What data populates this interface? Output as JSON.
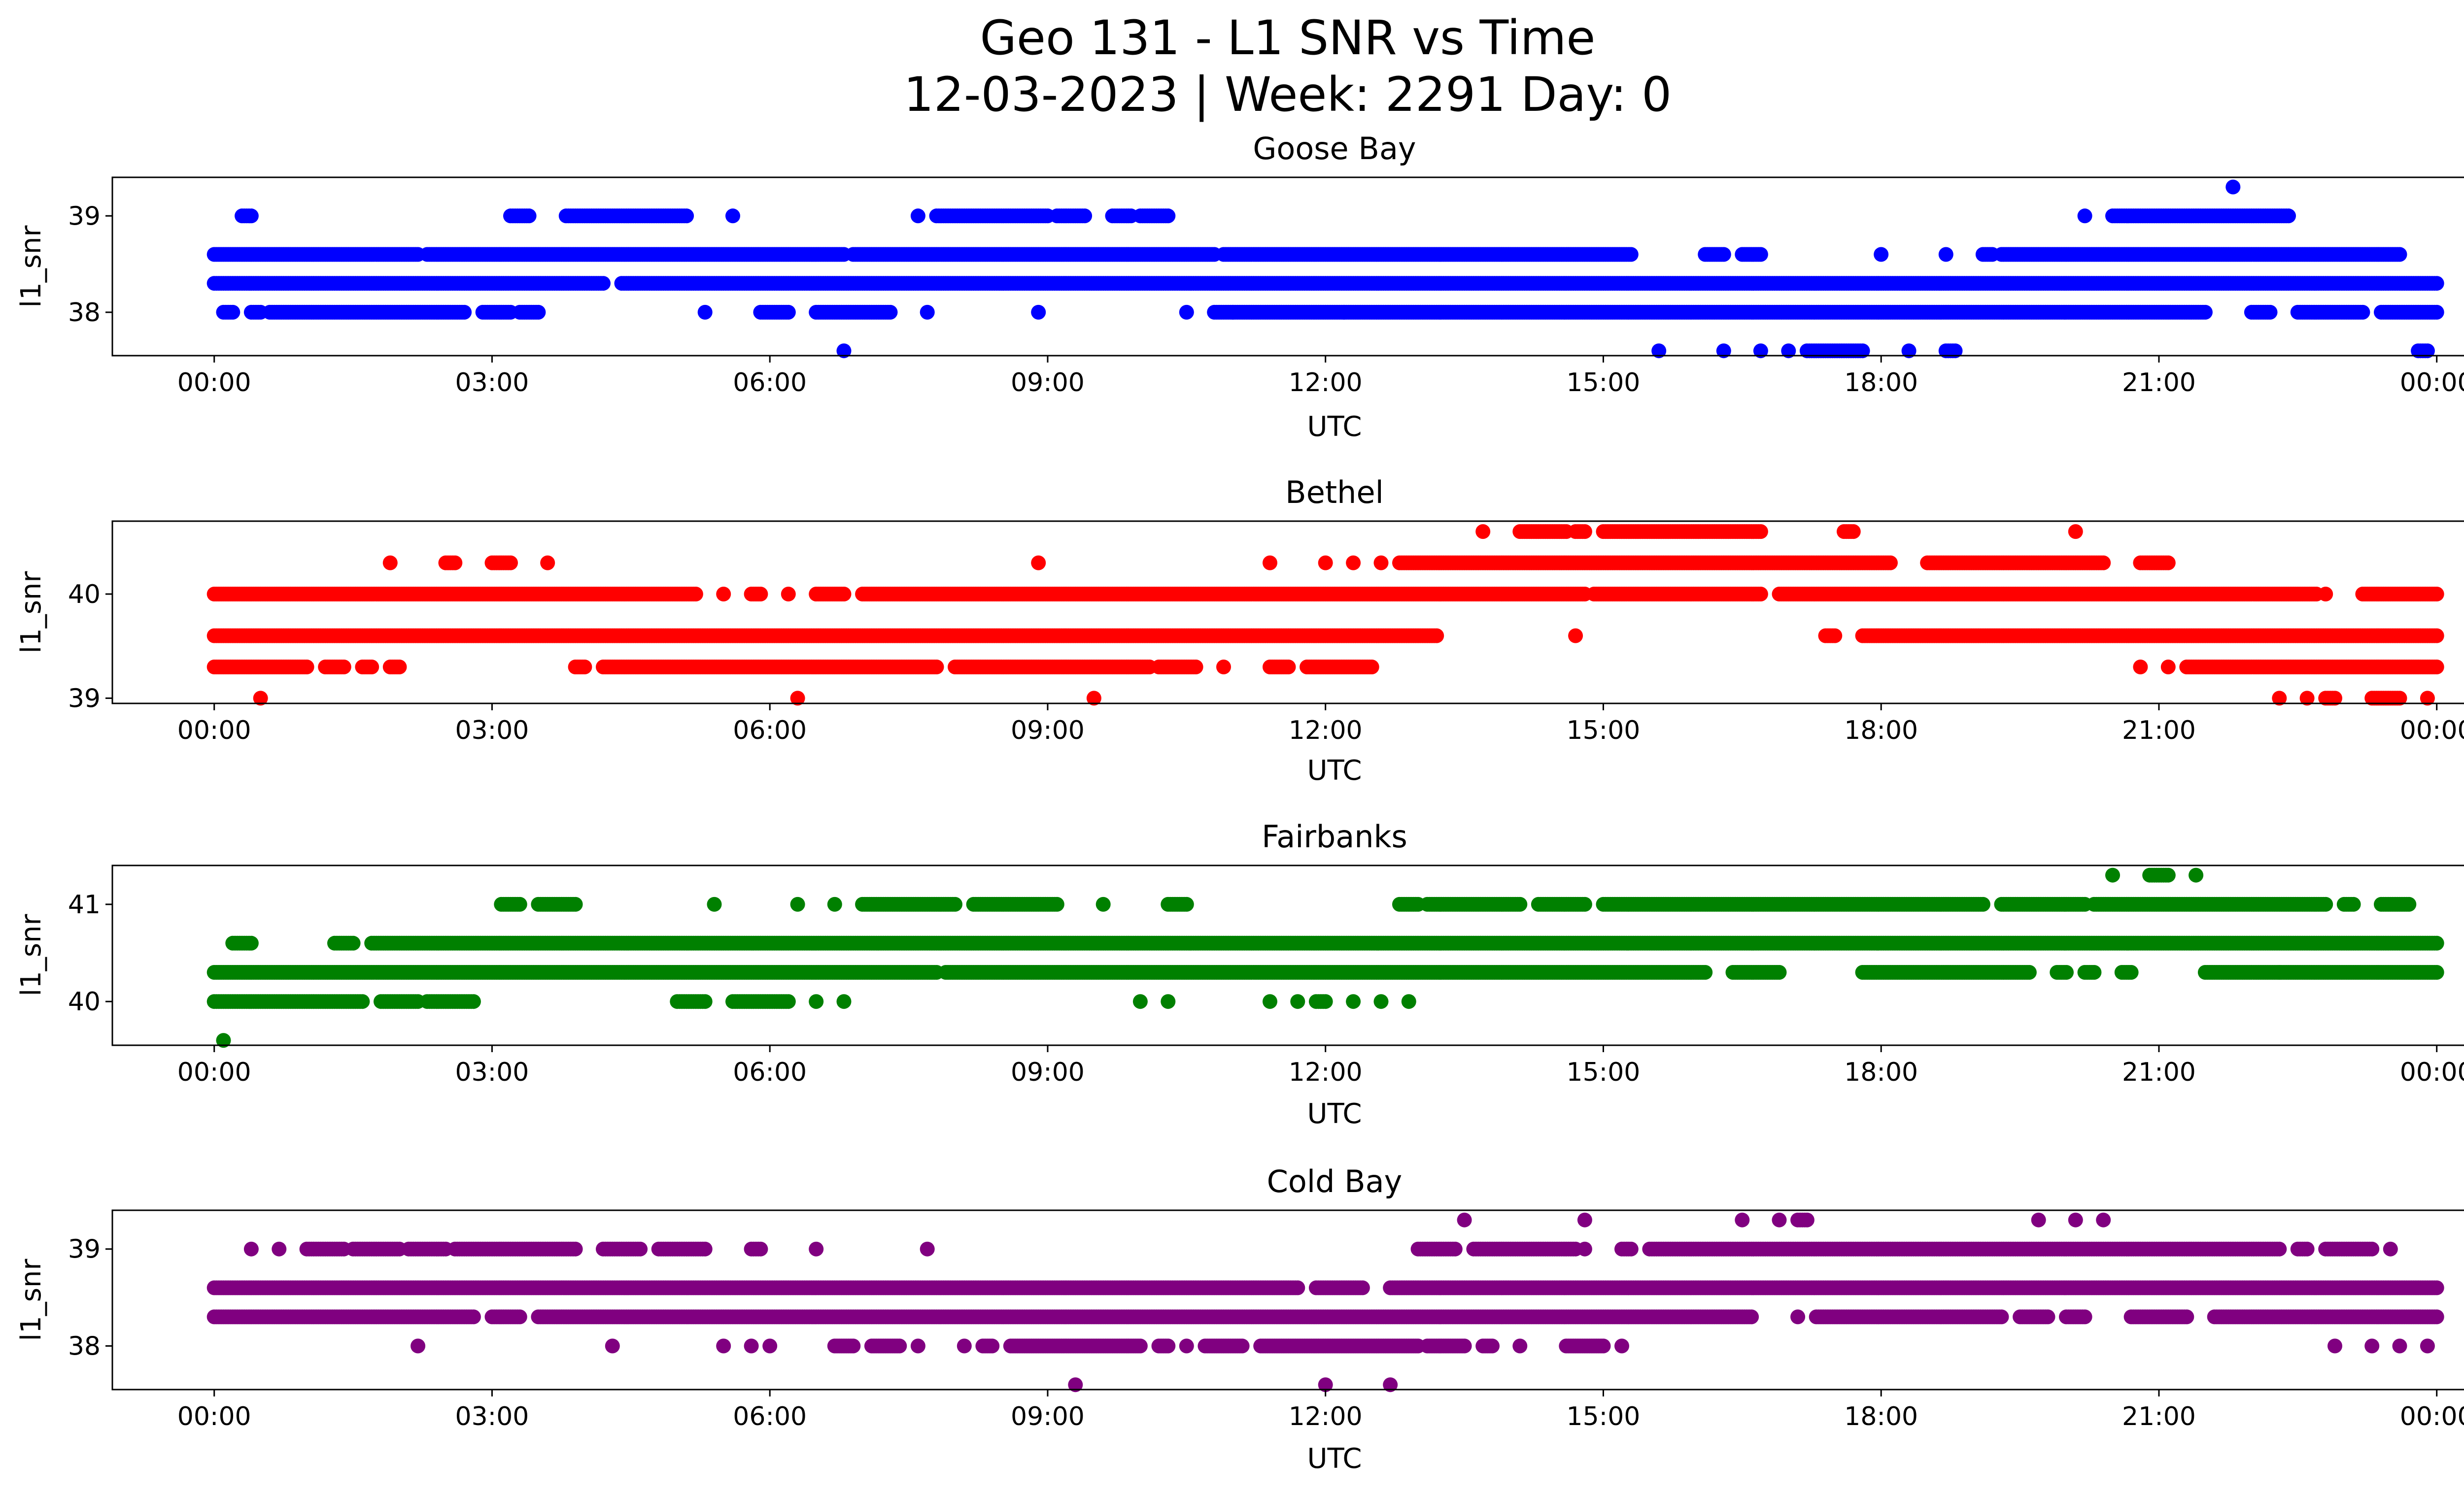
{
  "figure": {
    "title_line1": "Geo 131 - L1 SNR vs Time",
    "title_line2": "12-03-2023 | Week: 2291 Day: 0"
  },
  "chart_data": [
    {
      "type": "scatter",
      "title": "Goose Bay",
      "xlabel": "UTC",
      "ylabel": "l1_snr",
      "color": "#0000ff",
      "x_ticks": [
        "00:00",
        "03:00",
        "06:00",
        "09:00",
        "12:00",
        "15:00",
        "18:00",
        "21:00",
        "00:00"
      ],
      "xlim_hours": [
        -1.1,
        25.3
      ],
      "y_ticks": [
        38,
        39
      ],
      "ylim": [
        37.55,
        39.4
      ],
      "levels": [
        {
          "y": 39.3,
          "ranges": [
            [
              21.8,
              21.8
            ]
          ]
        },
        {
          "y": 39.0,
          "ranges": [
            [
              0.3,
              0.4
            ],
            [
              3.2,
              3.4
            ],
            [
              3.8,
              5.1
            ],
            [
              5.6,
              5.6
            ],
            [
              7.6,
              7.6
            ],
            [
              7.8,
              9.0
            ],
            [
              9.1,
              9.4
            ],
            [
              9.7,
              9.9
            ],
            [
              10.0,
              10.3
            ],
            [
              20.2,
              20.2
            ],
            [
              20.5,
              22.4
            ]
          ]
        },
        {
          "y": 38.6,
          "ranges": [
            [
              0.0,
              2.2
            ],
            [
              2.3,
              6.8
            ],
            [
              6.9,
              10.8
            ],
            [
              10.9,
              15.3
            ],
            [
              16.1,
              16.3
            ],
            [
              16.5,
              16.7
            ],
            [
              18.0,
              18.0
            ],
            [
              18.7,
              18.7
            ],
            [
              19.1,
              19.2
            ],
            [
              19.3,
              23.6
            ]
          ]
        },
        {
          "y": 38.3,
          "ranges": [
            [
              0.0,
              4.2
            ],
            [
              4.4,
              24.0
            ]
          ]
        },
        {
          "y": 38.0,
          "ranges": [
            [
              0.1,
              0.2
            ],
            [
              0.4,
              0.5
            ],
            [
              0.6,
              2.7
            ],
            [
              2.9,
              3.2
            ],
            [
              3.3,
              3.5
            ],
            [
              5.3,
              5.3
            ],
            [
              5.9,
              6.2
            ],
            [
              6.5,
              7.3
            ],
            [
              7.7,
              7.7
            ],
            [
              8.9,
              8.9
            ],
            [
              10.5,
              10.5
            ],
            [
              10.8,
              11.0
            ],
            [
              11.0,
              12.2
            ],
            [
              12.2,
              21.5
            ],
            [
              22.0,
              22.2
            ],
            [
              22.5,
              23.2
            ],
            [
              23.4,
              24.0
            ]
          ]
        },
        {
          "y": 37.6,
          "ranges": [
            [
              6.8,
              6.8
            ],
            [
              15.6,
              15.6
            ],
            [
              16.3,
              16.3
            ],
            [
              16.7,
              16.7
            ],
            [
              17.0,
              17.0
            ],
            [
              17.2,
              17.8
            ],
            [
              18.3,
              18.3
            ],
            [
              18.7,
              18.8
            ],
            [
              23.8,
              23.9
            ]
          ]
        }
      ]
    },
    {
      "type": "scatter",
      "title": "Bethel",
      "xlabel": "UTC",
      "ylabel": "l1_snr",
      "color": "#ff0000",
      "x_ticks": [
        "00:00",
        "03:00",
        "06:00",
        "09:00",
        "12:00",
        "15:00",
        "18:00",
        "21:00",
        "00:00"
      ],
      "xlim_hours": [
        -1.1,
        25.3
      ],
      "y_ticks": [
        39,
        40
      ],
      "ylim": [
        38.95,
        40.7
      ],
      "levels": [
        {
          "y": 40.6,
          "ranges": [
            [
              13.7,
              13.7
            ],
            [
              14.1,
              14.6
            ],
            [
              14.7,
              14.8
            ],
            [
              15.0,
              16.7
            ],
            [
              17.6,
              17.7
            ],
            [
              20.1,
              20.1
            ]
          ]
        },
        {
          "y": 40.3,
          "ranges": [
            [
              1.9,
              1.9
            ],
            [
              2.5,
              2.6
            ],
            [
              3.0,
              3.2
            ],
            [
              3.6,
              3.6
            ],
            [
              8.9,
              8.9
            ],
            [
              11.4,
              11.4
            ],
            [
              12.0,
              12.0
            ],
            [
              12.3,
              12.3
            ],
            [
              12.6,
              12.6
            ],
            [
              12.8,
              18.1
            ],
            [
              18.5,
              20.4
            ],
            [
              20.8,
              21.1
            ]
          ]
        },
        {
          "y": 40.0,
          "ranges": [
            [
              0.0,
              5.2
            ],
            [
              5.5,
              5.5
            ],
            [
              5.8,
              5.9
            ],
            [
              6.2,
              6.2
            ],
            [
              6.5,
              6.8
            ],
            [
              7.0,
              14.8
            ],
            [
              14.9,
              16.7
            ],
            [
              16.9,
              22.7
            ],
            [
              22.8,
              22.8
            ],
            [
              23.2,
              24.0
            ]
          ]
        },
        {
          "y": 39.6,
          "ranges": [
            [
              0.0,
              13.2
            ],
            [
              14.7,
              14.7
            ],
            [
              17.4,
              17.5
            ],
            [
              17.8,
              24.0
            ]
          ]
        },
        {
          "y": 39.3,
          "ranges": [
            [
              0.0,
              1.0
            ],
            [
              1.2,
              1.4
            ],
            [
              1.6,
              1.7
            ],
            [
              1.9,
              2.0
            ],
            [
              3.9,
              4.0
            ],
            [
              4.2,
              7.8
            ],
            [
              8.0,
              10.1
            ],
            [
              10.2,
              10.6
            ],
            [
              10.9,
              10.9
            ],
            [
              11.4,
              11.6
            ],
            [
              11.8,
              12.5
            ],
            [
              20.8,
              20.8
            ],
            [
              21.1,
              21.1
            ],
            [
              21.3,
              24.0
            ]
          ]
        },
        {
          "y": 39.0,
          "ranges": [
            [
              0.5,
              0.5
            ],
            [
              6.3,
              6.3
            ],
            [
              9.5,
              9.5
            ],
            [
              22.3,
              22.3
            ],
            [
              22.6,
              22.6
            ],
            [
              22.8,
              22.9
            ],
            [
              23.3,
              23.6
            ],
            [
              23.9,
              23.9
            ]
          ]
        }
      ]
    },
    {
      "type": "scatter",
      "title": "Fairbanks",
      "xlabel": "UTC",
      "ylabel": "l1_snr",
      "color": "#008000",
      "x_ticks": [
        "00:00",
        "03:00",
        "06:00",
        "09:00",
        "12:00",
        "15:00",
        "18:00",
        "21:00",
        "00:00"
      ],
      "xlim_hours": [
        -1.1,
        25.3
      ],
      "y_ticks": [
        40,
        41
      ],
      "ylim": [
        39.55,
        41.4
      ],
      "levels": [
        {
          "y": 41.3,
          "ranges": [
            [
              20.5,
              20.5
            ],
            [
              20.9,
              21.1
            ],
            [
              21.4,
              21.4
            ]
          ]
        },
        {
          "y": 41.0,
          "ranges": [
            [
              3.1,
              3.3
            ],
            [
              3.5,
              3.9
            ],
            [
              5.4,
              5.4
            ],
            [
              6.3,
              6.3
            ],
            [
              6.7,
              6.7
            ],
            [
              7.0,
              8.0
            ],
            [
              8.2,
              9.1
            ],
            [
              9.6,
              9.6
            ],
            [
              10.3,
              10.5
            ],
            [
              12.8,
              13.0
            ],
            [
              13.1,
              14.1
            ],
            [
              14.3,
              14.8
            ],
            [
              15.0,
              19.1
            ],
            [
              19.3,
              20.2
            ],
            [
              20.3,
              22.8
            ],
            [
              23.0,
              23.1
            ],
            [
              23.4,
              23.7
            ]
          ]
        },
        {
          "y": 40.6,
          "ranges": [
            [
              0.2,
              0.4
            ],
            [
              1.3,
              1.5
            ],
            [
              1.7,
              24.0
            ]
          ]
        },
        {
          "y": 40.3,
          "ranges": [
            [
              0.0,
              7.8
            ],
            [
              7.9,
              16.1
            ],
            [
              16.4,
              16.9
            ],
            [
              17.8,
              19.6
            ],
            [
              19.9,
              20.0
            ],
            [
              20.2,
              20.3
            ],
            [
              20.6,
              20.7
            ],
            [
              21.5,
              22.3
            ],
            [
              22.3,
              24.0
            ]
          ]
        },
        {
          "y": 40.0,
          "ranges": [
            [
              0.0,
              1.6
            ],
            [
              1.8,
              2.2
            ],
            [
              2.3,
              2.8
            ],
            [
              5.0,
              5.3
            ],
            [
              5.6,
              6.2
            ],
            [
              6.5,
              6.5
            ],
            [
              6.8,
              6.8
            ],
            [
              10.0,
              10.0
            ],
            [
              10.3,
              10.3
            ],
            [
              11.4,
              11.4
            ],
            [
              11.7,
              11.7
            ],
            [
              11.9,
              12.0
            ],
            [
              12.3,
              12.3
            ],
            [
              12.6,
              12.6
            ],
            [
              12.9,
              12.9
            ]
          ]
        },
        {
          "y": 39.6,
          "ranges": [
            [
              0.1,
              0.1
            ]
          ]
        }
      ]
    },
    {
      "type": "scatter",
      "title": "Cold Bay",
      "xlabel": "UTC",
      "ylabel": "l1_snr",
      "color": "#800080",
      "x_ticks": [
        "00:00",
        "03:00",
        "06:00",
        "09:00",
        "12:00",
        "15:00",
        "18:00",
        "21:00",
        "00:00"
      ],
      "xlim_hours": [
        -1.1,
        25.3
      ],
      "y_ticks": [
        38,
        39
      ],
      "ylim": [
        37.55,
        39.4
      ],
      "levels": [
        {
          "y": 39.3,
          "ranges": [
            [
              13.5,
              13.5
            ],
            [
              14.8,
              14.8
            ],
            [
              16.5,
              16.5
            ],
            [
              16.9,
              16.9
            ],
            [
              17.1,
              17.2
            ],
            [
              19.7,
              19.7
            ],
            [
              20.1,
              20.1
            ],
            [
              20.4,
              20.4
            ]
          ]
        },
        {
          "y": 39.0,
          "ranges": [
            [
              0.4,
              0.4
            ],
            [
              0.7,
              0.7
            ],
            [
              1.0,
              1.4
            ],
            [
              1.5,
              2.0
            ],
            [
              2.1,
              2.5
            ],
            [
              2.6,
              3.9
            ],
            [
              4.2,
              4.6
            ],
            [
              4.8,
              5.3
            ],
            [
              5.8,
              5.9
            ],
            [
              6.5,
              6.5
            ],
            [
              7.7,
              7.7
            ],
            [
              13.0,
              13.4
            ],
            [
              13.6,
              14.7
            ],
            [
              14.8,
              14.8
            ],
            [
              15.2,
              15.3
            ],
            [
              15.5,
              22.3
            ],
            [
              22.5,
              22.6
            ],
            [
              22.8,
              23.3
            ],
            [
              23.5,
              23.5
            ]
          ]
        },
        {
          "y": 38.6,
          "ranges": [
            [
              0.0,
              11.7
            ],
            [
              11.9,
              12.4
            ],
            [
              12.7,
              24.0
            ]
          ]
        },
        {
          "y": 38.3,
          "ranges": [
            [
              0.0,
              2.8
            ],
            [
              3.0,
              3.3
            ],
            [
              3.5,
              16.6
            ],
            [
              17.1,
              17.1
            ],
            [
              17.3,
              19.3
            ],
            [
              19.5,
              19.8
            ],
            [
              20.0,
              20.2
            ],
            [
              20.7,
              21.3
            ],
            [
              21.6,
              24.0
            ]
          ]
        },
        {
          "y": 38.0,
          "ranges": [
            [
              2.2,
              2.2
            ],
            [
              4.3,
              4.3
            ],
            [
              5.5,
              5.5
            ],
            [
              5.8,
              5.8
            ],
            [
              6.0,
              6.0
            ],
            [
              6.7,
              6.9
            ],
            [
              7.1,
              7.4
            ],
            [
              7.6,
              7.6
            ],
            [
              8.1,
              8.1
            ],
            [
              8.3,
              8.4
            ],
            [
              8.6,
              10.0
            ],
            [
              10.2,
              10.3
            ],
            [
              10.5,
              10.5
            ],
            [
              10.7,
              11.1
            ],
            [
              11.3,
              13.0
            ],
            [
              13.1,
              13.5
            ],
            [
              13.7,
              13.8
            ],
            [
              14.1,
              14.1
            ],
            [
              14.6,
              15.0
            ],
            [
              15.2,
              15.2
            ],
            [
              22.9,
              22.9
            ],
            [
              23.3,
              23.3
            ],
            [
              23.6,
              23.6
            ],
            [
              23.9,
              23.9
            ]
          ]
        },
        {
          "y": 37.6,
          "ranges": [
            [
              9.3,
              9.3
            ],
            [
              12.0,
              12.0
            ],
            [
              12.7,
              12.7
            ]
          ]
        }
      ]
    }
  ]
}
